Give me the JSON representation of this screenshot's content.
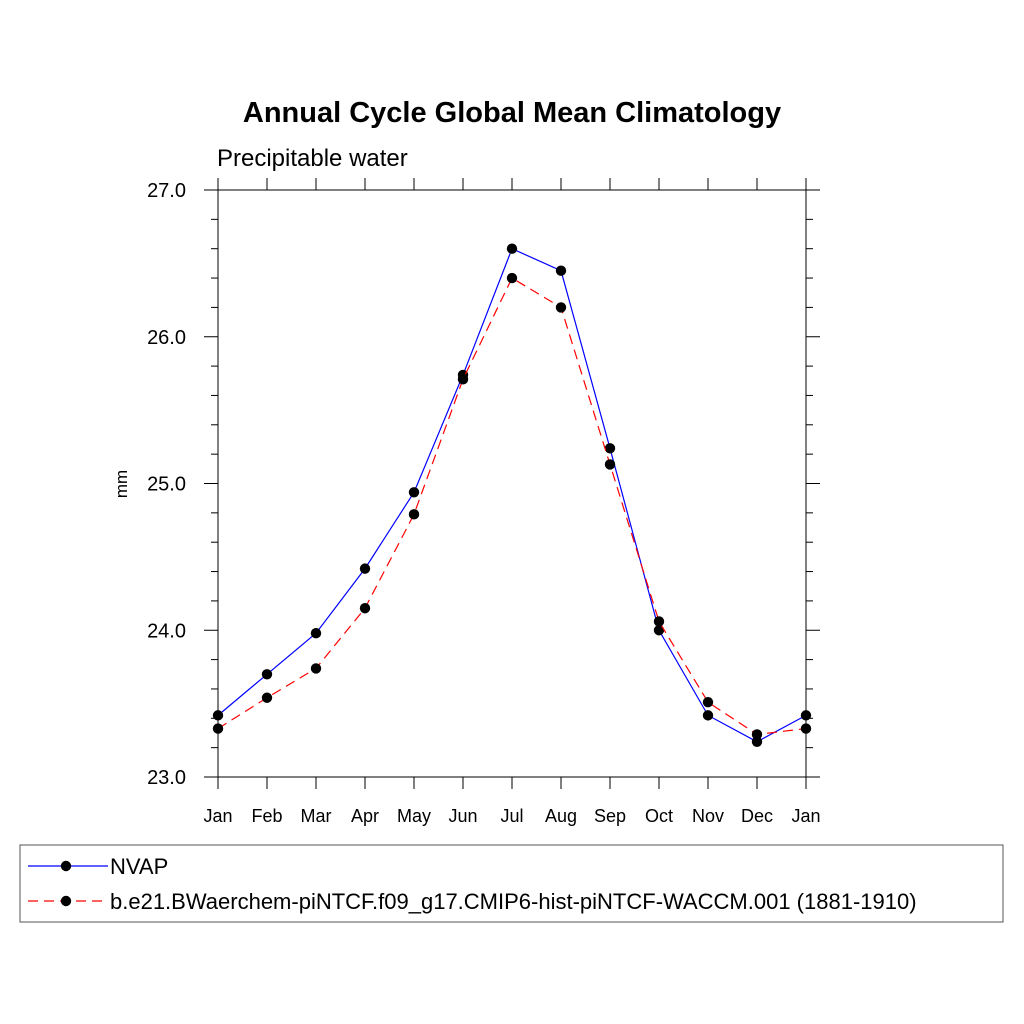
{
  "chart_data": {
    "type": "line",
    "title": "Annual Cycle Global Mean Climatology",
    "subtitle": "Precipitable water",
    "ylabel": "mm",
    "xlabel": "",
    "ylim": [
      23.0,
      27.0
    ],
    "yticks": [
      "23.0",
      "24.0",
      "25.0",
      "26.0",
      "27.0"
    ],
    "categories": [
      "Jan",
      "Feb",
      "Mar",
      "Apr",
      "May",
      "Jun",
      "Jul",
      "Aug",
      "Sep",
      "Oct",
      "Nov",
      "Dec",
      "Jan"
    ],
    "series": [
      {
        "name": "NVAP",
        "color": "#0000ff",
        "dash": "solid",
        "values": [
          23.42,
          23.7,
          23.98,
          24.42,
          24.94,
          25.74,
          26.6,
          26.45,
          25.24,
          24.0,
          23.42,
          23.24,
          23.42
        ]
      },
      {
        "name": "b.e21.BWaerchem-piNTCF.f09_g17.CMIP6-hist-piNTCF-WACCM.001 (1881-1910)",
        "color": "#ff0000",
        "dash": "dashed",
        "values": [
          23.33,
          23.54,
          23.74,
          24.15,
          24.79,
          25.71,
          26.4,
          26.2,
          25.13,
          24.06,
          23.51,
          23.29,
          23.33
        ]
      }
    ]
  }
}
